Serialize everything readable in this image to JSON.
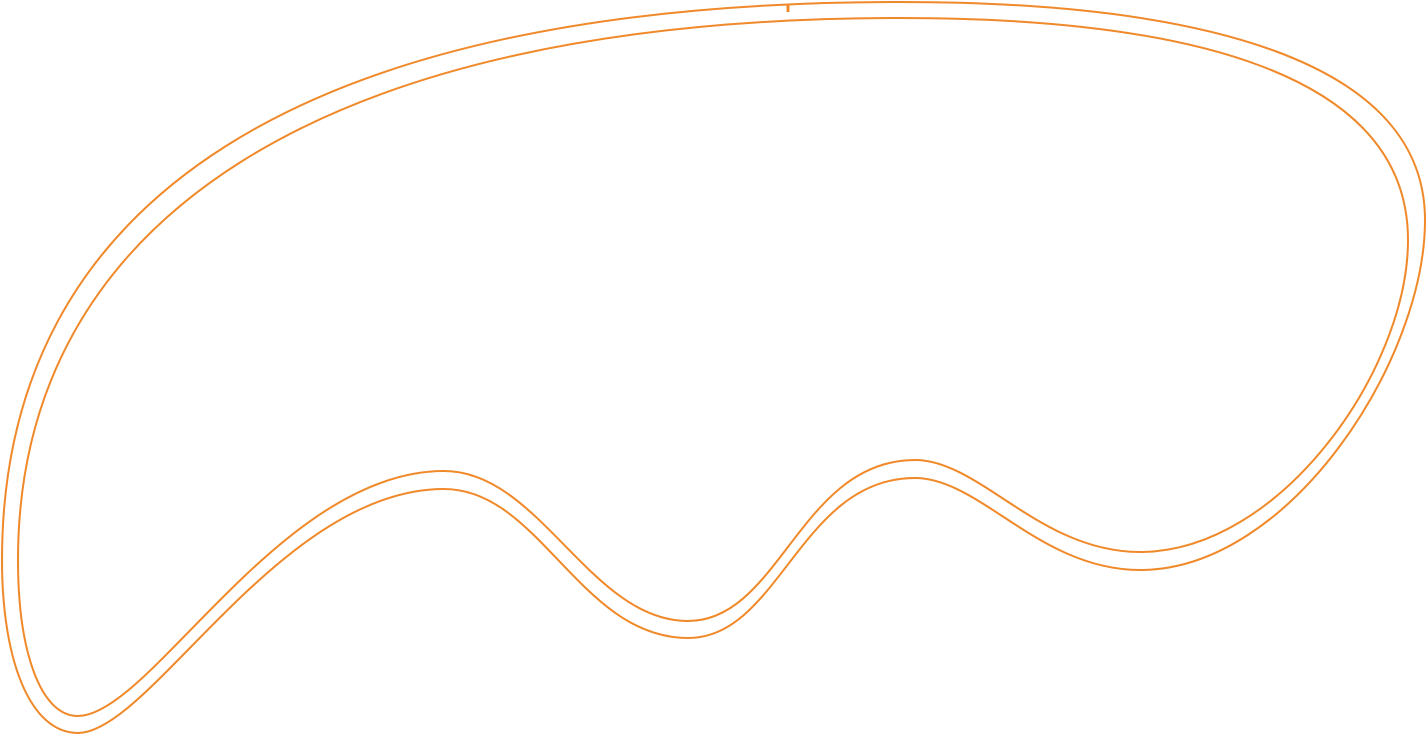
{
  "game": {
    "view": "race-track-overview",
    "track_color": "#f0892a",
    "background_color": "#ffffff",
    "start_line_icon": "start-finish-line"
  }
}
